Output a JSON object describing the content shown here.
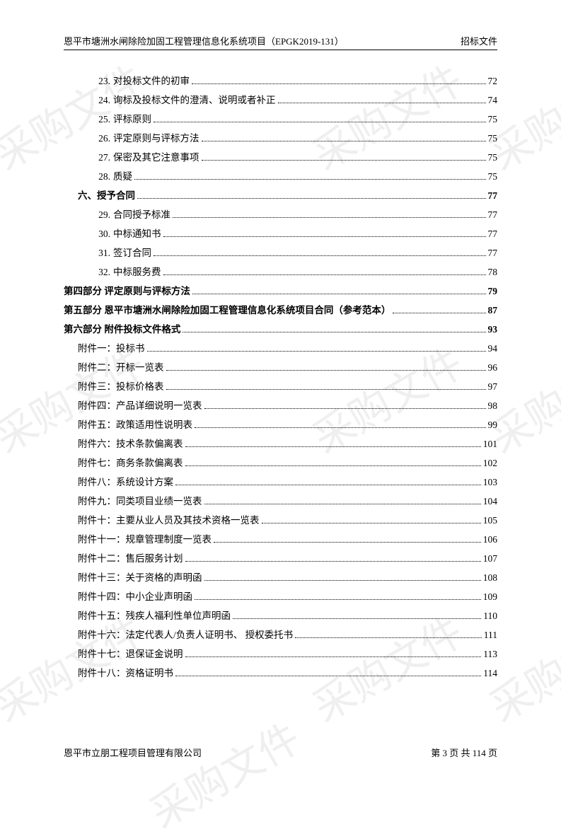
{
  "header": {
    "left": "恩平市塘洲水闸除险加固工程管理信息化系统项目（EPGK2019-131）",
    "right": "招标文件"
  },
  "watermark_text": "采购文件",
  "toc": [
    {
      "num": "23.",
      "label": "对投标文件的初审",
      "page": "72",
      "indent": 1,
      "bold": false
    },
    {
      "num": "24.",
      "label": "询标及投标文件的澄清、说明或者补正",
      "page": "74",
      "indent": 1,
      "bold": false
    },
    {
      "num": "25.",
      "label": "评标原则",
      "page": "75",
      "indent": 1,
      "bold": false
    },
    {
      "num": "26.",
      "label": "评定原则与评标方法",
      "page": "75",
      "indent": 1,
      "bold": false
    },
    {
      "num": "27.",
      "label": "保密及其它注意事项",
      "page": "75",
      "indent": 1,
      "bold": false
    },
    {
      "num": "28.",
      "label": "质疑",
      "page": "75",
      "indent": 1,
      "bold": false
    },
    {
      "num": "",
      "label": "六、授予合同",
      "page": "77",
      "indent": 2,
      "bold": true
    },
    {
      "num": "29.",
      "label": "合同授予标准",
      "page": "77",
      "indent": 1,
      "bold": false
    },
    {
      "num": "30.",
      "label": "中标通知书",
      "page": "77",
      "indent": 1,
      "bold": false
    },
    {
      "num": "31.",
      "label": "签订合同",
      "page": "77",
      "indent": 1,
      "bold": false
    },
    {
      "num": "32.",
      "label": "中标服务费",
      "page": "78",
      "indent": 1,
      "bold": false
    },
    {
      "num": "",
      "label": "第四部分  评定原则与评标方法",
      "page": "79",
      "indent": 0,
      "bold": true
    },
    {
      "num": "",
      "label": "第五部分  恩平市塘洲水闸除险加固工程管理信息化系统项目合同（参考范本）",
      "page": "87",
      "indent": 0,
      "bold": true
    },
    {
      "num": "",
      "label": "第六部分  附件投标文件格式",
      "page": "93",
      "indent": 0,
      "bold": true
    },
    {
      "num": "",
      "label": "附件一：投标书",
      "page": "94",
      "indent": 2,
      "bold": false
    },
    {
      "num": "",
      "label": "附件二：开标一览表",
      "page": "96",
      "indent": 2,
      "bold": false
    },
    {
      "num": "",
      "label": "附件三：投标价格表",
      "page": "97",
      "indent": 2,
      "bold": false
    },
    {
      "num": "",
      "label": "附件四：产品详细说明一览表",
      "page": "98",
      "indent": 2,
      "bold": false
    },
    {
      "num": "",
      "label": "附件五：政策适用性说明表",
      "page": "99",
      "indent": 2,
      "bold": false
    },
    {
      "num": "",
      "label": "附件六：技术条款偏离表",
      "page": "101",
      "indent": 2,
      "bold": false
    },
    {
      "num": "",
      "label": "附件七：商务条款偏离表",
      "page": "102",
      "indent": 2,
      "bold": false
    },
    {
      "num": "",
      "label": "附件八：系统设计方案",
      "page": "103",
      "indent": 2,
      "bold": false
    },
    {
      "num": "",
      "label": "附件九：同类项目业绩一览表",
      "page": "104",
      "indent": 2,
      "bold": false
    },
    {
      "num": "",
      "label": "附件十：主要从业人员及其技术资格一览表",
      "page": "105",
      "indent": 2,
      "bold": false
    },
    {
      "num": "",
      "label": "附件十一：规章管理制度一览表",
      "page": "106",
      "indent": 2,
      "bold": false
    },
    {
      "num": "",
      "label": "附件十二：售后服务计划",
      "page": "107",
      "indent": 2,
      "bold": false
    },
    {
      "num": "",
      "label": "附件十三：关于资格的声明函",
      "page": "108",
      "indent": 2,
      "bold": false
    },
    {
      "num": "",
      "label": "附件十四：中小企业声明函",
      "page": "109",
      "indent": 2,
      "bold": false
    },
    {
      "num": "",
      "label": "附件十五：残疾人福利性单位声明函",
      "page": "110",
      "indent": 2,
      "bold": false
    },
    {
      "num": "",
      "label": "附件十六：法定代表人/负责人证明书、 授权委托书",
      "page": "111",
      "indent": 2,
      "bold": false
    },
    {
      "num": "",
      "label": "附件十七：退保证金说明",
      "page": "113",
      "indent": 2,
      "bold": false
    },
    {
      "num": "",
      "label": "附件十八：资格证明书",
      "page": "114",
      "indent": 2,
      "bold": false
    }
  ],
  "footer": {
    "left": "恩平市立朋工程项目管理有限公司",
    "right": "第 3 页 共 114 页"
  }
}
